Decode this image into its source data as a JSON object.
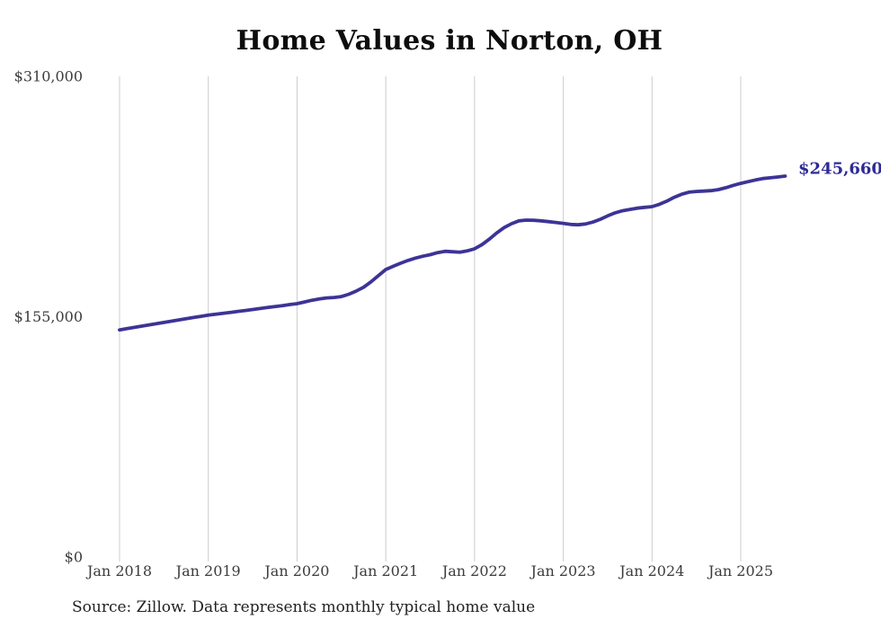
{
  "page": {
    "background": "#ffffff"
  },
  "chart_data": {
    "type": "line",
    "title": "Home Values in Norton, OH",
    "series_name": "Monthly typical home value",
    "x_start": "Jan 2018",
    "x_end": "Jul 2025",
    "x_interval": "monthly",
    "x_tick_labels": [
      "Jan 2018",
      "Jan 2019",
      "Jan 2020",
      "Jan 2021",
      "Jan 2022",
      "Jan 2023",
      "Jan 2024",
      "Jan 2025"
    ],
    "y_ticks": [
      {
        "label": "$0",
        "value": 0
      },
      {
        "label": "$155,000",
        "value": 155000
      },
      {
        "label": "$310,000",
        "value": 310000
      }
    ],
    "ylim": [
      0,
      310000
    ],
    "grid": "vertical-only",
    "legend": "none",
    "gridline_color": "#cccccc",
    "line_color": "#3c3496",
    "end_label": "$245,660",
    "end_label_color": "#2e2a96",
    "values": [
      146500,
      147300,
      148100,
      148900,
      149700,
      150500,
      151300,
      152100,
      152900,
      153700,
      154500,
      155250,
      156000,
      156600,
      157200,
      157800,
      158400,
      159000,
      159650,
      160300,
      160900,
      161500,
      162150,
      162800,
      163400,
      164500,
      165600,
      166500,
      167100,
      167400,
      168000,
      169500,
      171500,
      174000,
      177500,
      181500,
      185400,
      187500,
      189500,
      191300,
      192800,
      194000,
      195000,
      196300,
      197200,
      196900,
      196600,
      197400,
      198800,
      201500,
      205000,
      209000,
      212500,
      215000,
      216800,
      217300,
      217200,
      216800,
      216300,
      215800,
      215200,
      214500,
      214300,
      214800,
      216000,
      217800,
      220000,
      222000,
      223300,
      224200,
      225000,
      225500,
      226000,
      227500,
      229500,
      232000,
      234000,
      235300,
      235800,
      236000,
      236300,
      237000,
      238200,
      239700,
      241000,
      242100,
      243200,
      244100,
      244600,
      245100,
      245660
    ]
  },
  "footer": {
    "source_note": "Source: Zillow. Data represents monthly typical home value"
  }
}
